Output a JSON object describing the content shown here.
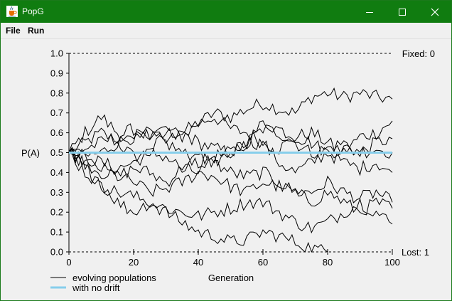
{
  "window": {
    "title": "PopG",
    "icon": "java-cup-icon",
    "titlebar_color": "#107c10"
  },
  "menu": [
    {
      "label": "File"
    },
    {
      "label": "Run"
    }
  ],
  "chart_data": {
    "type": "line",
    "xlabel": "Generation",
    "ylabel": "P(A)",
    "xlim": [
      0,
      100
    ],
    "ylim": [
      0,
      1
    ],
    "x_ticks": [
      0,
      20,
      40,
      60,
      80,
      100
    ],
    "y_ticks": [
      0.0,
      0.1,
      0.2,
      0.3,
      0.4,
      0.5,
      0.6,
      0.7,
      0.8,
      0.9,
      1.0
    ],
    "y_tick_labels": [
      "0.0",
      "0.1",
      "0.2",
      "0.3",
      "0.4",
      "0.5",
      "0.6",
      "0.7",
      "0.8",
      "0.9",
      "1.0"
    ],
    "fixed_label": "Fixed: 0",
    "lost_label": "Lost: 1",
    "legend": [
      {
        "label": "evolving populations",
        "color": "#000000"
      },
      {
        "label": "with no drift",
        "color": "#87ceeb"
      }
    ],
    "no_drift_value": 0.5,
    "series_color": "#000000",
    "no_drift_color": "#87ceeb",
    "series": [
      {
        "keypoints": [
          [
            0,
            0.5
          ],
          [
            5,
            0.55
          ],
          [
            10,
            0.6
          ],
          [
            15,
            0.55
          ],
          [
            20,
            0.48
          ],
          [
            25,
            0.5
          ],
          [
            30,
            0.6
          ],
          [
            35,
            0.6
          ],
          [
            40,
            0.65
          ],
          [
            45,
            0.7
          ],
          [
            50,
            0.68
          ],
          [
            55,
            0.72
          ],
          [
            60,
            0.75
          ],
          [
            65,
            0.72
          ],
          [
            70,
            0.7
          ],
          [
            75,
            0.78
          ],
          [
            80,
            0.8
          ],
          [
            85,
            0.78
          ],
          [
            90,
            0.8
          ],
          [
            95,
            0.78
          ],
          [
            100,
            0.77
          ]
        ]
      },
      {
        "keypoints": [
          [
            0,
            0.5
          ],
          [
            5,
            0.6
          ],
          [
            10,
            0.68
          ],
          [
            15,
            0.6
          ],
          [
            20,
            0.55
          ],
          [
            25,
            0.6
          ],
          [
            30,
            0.62
          ],
          [
            35,
            0.58
          ],
          [
            40,
            0.65
          ],
          [
            45,
            0.68
          ],
          [
            50,
            0.62
          ],
          [
            55,
            0.6
          ],
          [
            60,
            0.55
          ],
          [
            65,
            0.52
          ],
          [
            70,
            0.58
          ],
          [
            75,
            0.6
          ],
          [
            80,
            0.55
          ],
          [
            85,
            0.5
          ],
          [
            90,
            0.58
          ],
          [
            95,
            0.6
          ],
          [
            100,
            0.66
          ]
        ]
      },
      {
        "keypoints": [
          [
            0,
            0.5
          ],
          [
            5,
            0.52
          ],
          [
            10,
            0.55
          ],
          [
            15,
            0.58
          ],
          [
            20,
            0.62
          ],
          [
            25,
            0.58
          ],
          [
            30,
            0.55
          ],
          [
            35,
            0.6
          ],
          [
            40,
            0.55
          ],
          [
            45,
            0.52
          ],
          [
            50,
            0.5
          ],
          [
            55,
            0.55
          ],
          [
            60,
            0.62
          ],
          [
            65,
            0.6
          ],
          [
            70,
            0.55
          ],
          [
            75,
            0.5
          ],
          [
            80,
            0.52
          ],
          [
            85,
            0.55
          ],
          [
            90,
            0.5
          ],
          [
            95,
            0.55
          ],
          [
            100,
            0.57
          ]
        ]
      },
      {
        "keypoints": [
          [
            0,
            0.5
          ],
          [
            5,
            0.48
          ],
          [
            10,
            0.5
          ],
          [
            15,
            0.55
          ],
          [
            20,
            0.58
          ],
          [
            25,
            0.6
          ],
          [
            30,
            0.55
          ],
          [
            35,
            0.5
          ],
          [
            40,
            0.45
          ],
          [
            45,
            0.48
          ],
          [
            50,
            0.5
          ],
          [
            55,
            0.55
          ],
          [
            60,
            0.65
          ],
          [
            65,
            0.62
          ],
          [
            70,
            0.58
          ],
          [
            75,
            0.55
          ],
          [
            80,
            0.5
          ],
          [
            85,
            0.52
          ],
          [
            90,
            0.5
          ],
          [
            95,
            0.52
          ],
          [
            100,
            0.5
          ]
        ]
      },
      {
        "keypoints": [
          [
            0,
            0.5
          ],
          [
            5,
            0.47
          ],
          [
            10,
            0.45
          ],
          [
            15,
            0.42
          ],
          [
            20,
            0.45
          ],
          [
            25,
            0.5
          ],
          [
            30,
            0.48
          ],
          [
            35,
            0.42
          ],
          [
            40,
            0.4
          ],
          [
            45,
            0.45
          ],
          [
            50,
            0.5
          ],
          [
            55,
            0.55
          ],
          [
            60,
            0.55
          ],
          [
            65,
            0.45
          ],
          [
            70,
            0.4
          ],
          [
            75,
            0.45
          ],
          [
            80,
            0.5
          ],
          [
            85,
            0.45
          ],
          [
            90,
            0.42
          ],
          [
            95,
            0.45
          ],
          [
            100,
            0.4
          ]
        ]
      },
      {
        "keypoints": [
          [
            0,
            0.5
          ],
          [
            5,
            0.45
          ],
          [
            10,
            0.4
          ],
          [
            15,
            0.38
          ],
          [
            20,
            0.42
          ],
          [
            25,
            0.4
          ],
          [
            30,
            0.35
          ],
          [
            35,
            0.42
          ],
          [
            40,
            0.48
          ],
          [
            45,
            0.45
          ],
          [
            50,
            0.4
          ],
          [
            55,
            0.38
          ],
          [
            60,
            0.4
          ],
          [
            65,
            0.35
          ],
          [
            70,
            0.3
          ],
          [
            75,
            0.3
          ],
          [
            80,
            0.35
          ],
          [
            85,
            0.3
          ],
          [
            90,
            0.27
          ],
          [
            95,
            0.3
          ],
          [
            100,
            0.25
          ]
        ]
      },
      {
        "keypoints": [
          [
            0,
            0.5
          ],
          [
            5,
            0.45
          ],
          [
            10,
            0.42
          ],
          [
            15,
            0.38
          ],
          [
            20,
            0.35
          ],
          [
            25,
            0.3
          ],
          [
            30,
            0.32
          ],
          [
            35,
            0.35
          ],
          [
            40,
            0.4
          ],
          [
            45,
            0.38
          ],
          [
            50,
            0.33
          ],
          [
            55,
            0.3
          ],
          [
            60,
            0.35
          ],
          [
            65,
            0.33
          ],
          [
            70,
            0.3
          ],
          [
            75,
            0.25
          ],
          [
            80,
            0.3
          ],
          [
            85,
            0.25
          ],
          [
            90,
            0.2
          ],
          [
            95,
            0.25
          ],
          [
            100,
            0.22
          ]
        ]
      },
      {
        "keypoints": [
          [
            0,
            0.5
          ],
          [
            5,
            0.42
          ],
          [
            10,
            0.35
          ],
          [
            15,
            0.25
          ],
          [
            20,
            0.2
          ],
          [
            25,
            0.25
          ],
          [
            30,
            0.22
          ],
          [
            35,
            0.2
          ],
          [
            40,
            0.18
          ],
          [
            45,
            0.2
          ],
          [
            50,
            0.22
          ],
          [
            55,
            0.25
          ],
          [
            60,
            0.25
          ],
          [
            65,
            0.2
          ],
          [
            70,
            0.15
          ],
          [
            75,
            0.12
          ],
          [
            80,
            0.15
          ],
          [
            85,
            0.2
          ],
          [
            90,
            0.25
          ],
          [
            95,
            0.2
          ],
          [
            100,
            0.14
          ]
        ]
      },
      {
        "keypoints": [
          [
            0,
            0.5
          ],
          [
            5,
            0.4
          ],
          [
            10,
            0.33
          ],
          [
            15,
            0.3
          ],
          [
            20,
            0.28
          ],
          [
            25,
            0.25
          ],
          [
            30,
            0.2
          ],
          [
            35,
            0.15
          ],
          [
            40,
            0.1
          ],
          [
            45,
            0.08
          ],
          [
            50,
            0.05
          ],
          [
            55,
            0.06
          ],
          [
            60,
            0.1
          ],
          [
            65,
            0.08
          ],
          [
            70,
            0.05
          ],
          [
            75,
            0.02
          ],
          [
            80,
            0.0
          ]
        ]
      }
    ]
  }
}
